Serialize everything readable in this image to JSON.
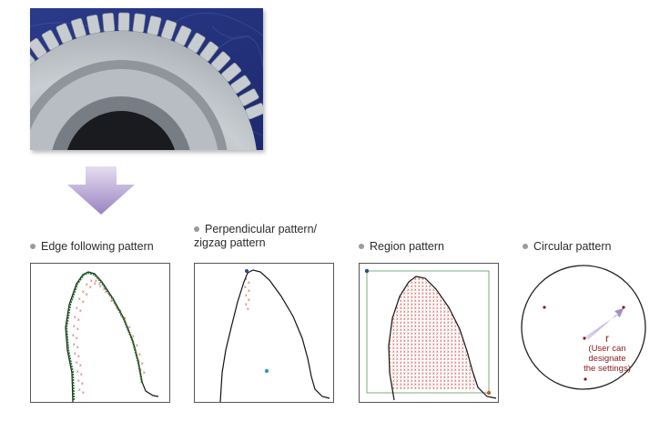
{
  "labels": {
    "edge": "Edge following pattern",
    "perpendicular_line1": "Perpendicular pattern/",
    "perpendicular_line2": "zigzag pattern",
    "region": "Region pattern",
    "circular": "Circular pattern"
  },
  "circular_annotation": {
    "r": "r",
    "line1": "(User can",
    "line2": "designate",
    "line3": "the settings)"
  },
  "colors": {
    "bullet": "#9a9a9a",
    "arrow_top": "#e6ddf0",
    "arrow_bottom": "#9a83c2",
    "edge_trace": "#1f6b2a",
    "pattern_points": "#c0392b",
    "region_box": "#5a9a5a",
    "marker_blue": "#2a9fbf",
    "annotation": "#8b1a1a"
  }
}
